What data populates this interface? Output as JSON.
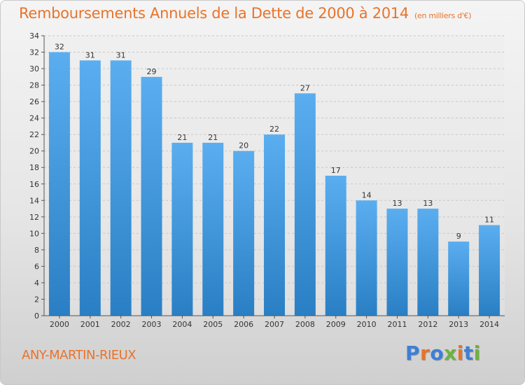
{
  "header": {
    "title": "Remboursements Annuels de la Dette de 2000 à 2014",
    "unit": "(en milliers d'€)"
  },
  "footer": {
    "commune": "ANY-MARTIN-RIEUX",
    "logo": "Proxiti",
    "logo_colors": [
      "#3d7fd6",
      "#e8732a",
      "#3d7fd6",
      "#6db33f",
      "#e8732a",
      "#3d7fd6",
      "#6db33f"
    ]
  },
  "colors": {
    "title": "#e8732a",
    "bar_top": "#5aaef0",
    "bar_bottom": "#2a7fc4",
    "grid": "#c8c8c8",
    "axis": "#555555"
  },
  "chart_data": {
    "type": "bar",
    "title": "Remboursements Annuels de la Dette de 2000 à 2014",
    "unit": "(en milliers d'€)",
    "categories": [
      "2000",
      "2001",
      "2002",
      "2003",
      "2004",
      "2005",
      "2006",
      "2007",
      "2008",
      "2009",
      "2010",
      "2011",
      "2012",
      "2013",
      "2014"
    ],
    "values": [
      32,
      31,
      31,
      29,
      21,
      21,
      20,
      22,
      27,
      17,
      14,
      13,
      13,
      9,
      11
    ],
    "ylim": [
      0,
      34
    ],
    "yticks": [
      0,
      2,
      4,
      6,
      8,
      10,
      12,
      14,
      16,
      18,
      20,
      22,
      24,
      26,
      28,
      30,
      32,
      34
    ],
    "grid": "dashed-horizontal",
    "legend": "none"
  }
}
